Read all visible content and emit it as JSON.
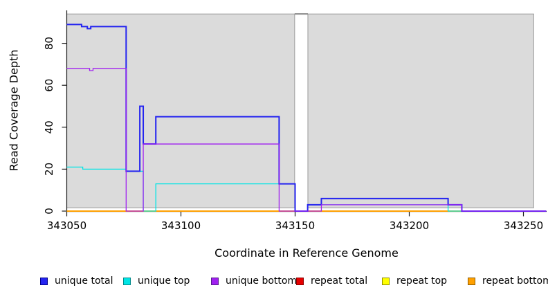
{
  "figure": {
    "x_axis_title": "Coordinate in Reference Genome",
    "y_axis_title": "Read Coverage Depth"
  },
  "legend": {
    "items": [
      {
        "label": "unique total",
        "color": "#2424F0",
        "border": "#00008B"
      },
      {
        "label": "unique top",
        "color": "#00E5E5",
        "border": "#008B8B"
      },
      {
        "label": "unique bottom",
        "color": "#A020F0",
        "border": "#551A8B"
      },
      {
        "label": "repeat total",
        "color": "#E60000",
        "border": "#8B0000"
      },
      {
        "label": "repeat top",
        "color": "#FFFF00",
        "border": "#8B8B00"
      },
      {
        "label": "repeat bottom",
        "color": "#FFA000",
        "border": "#8B5A00"
      }
    ]
  },
  "chart_data": {
    "type": "line",
    "subtype": "step",
    "title": "",
    "xlabel": "Coordinate in Reference Genome",
    "ylabel": "Read Coverage Depth",
    "xlim": [
      343048,
      343260
    ],
    "ylim": [
      0,
      95
    ],
    "x_ticks": [
      343050,
      343100,
      343150,
      343200,
      343250
    ],
    "y_ticks": [
      0,
      20,
      40,
      60,
      80
    ],
    "grid": false,
    "legend_position": "bottom",
    "background_regions": [
      {
        "x1": 343050,
        "x2": 343149.8,
        "y1": 1.6,
        "y2": 94,
        "fill": "#DBDBDB",
        "stroke": "#999999"
      },
      {
        "x1": 343155.6,
        "x2": 343254.5,
        "y1": 1.6,
        "y2": 94,
        "fill": "#DBDBDB",
        "stroke": "#999999"
      }
    ],
    "series": [
      {
        "name": "unique total",
        "color": "#2424F0",
        "width": 2,
        "draw_order": 5,
        "points": [
          [
            343050,
            89
          ],
          [
            343056.5,
            88
          ],
          [
            343059,
            87
          ],
          [
            343060.5,
            88
          ],
          [
            343076,
            19
          ],
          [
            343082,
            50
          ],
          [
            343083.5,
            32
          ],
          [
            343089,
            45
          ],
          [
            343143,
            13
          ],
          [
            343150,
            0
          ],
          [
            343155.5,
            3
          ],
          [
            343161.5,
            6
          ],
          [
            343217,
            3
          ],
          [
            343223,
            0
          ],
          [
            343260,
            0
          ]
        ]
      },
      {
        "name": "unique top",
        "color": "#00E5E5",
        "width": 1.3,
        "draw_order": 4,
        "points": [
          [
            343050,
            21
          ],
          [
            343057,
            20
          ],
          [
            343076,
            19
          ],
          [
            343083.5,
            0
          ],
          [
            343089,
            13
          ],
          [
            343150,
            0
          ],
          [
            343155.5,
            3
          ],
          [
            343217,
            0
          ],
          [
            343260,
            0
          ]
        ]
      },
      {
        "name": "unique bottom",
        "color": "#A020F0",
        "width": 1.3,
        "draw_order": 6,
        "points": [
          [
            343050,
            68
          ],
          [
            343060,
            67
          ],
          [
            343061.5,
            68
          ],
          [
            343076,
            0
          ],
          [
            343083.5,
            32
          ],
          [
            343143,
            0
          ],
          [
            343161.5,
            3
          ],
          [
            343223,
            0
          ],
          [
            343260,
            0
          ]
        ]
      },
      {
        "name": "repeat total",
        "color": "#E60000",
        "width": 1.3,
        "draw_order": 1,
        "points": [
          [
            343050,
            0
          ],
          [
            343260,
            0
          ]
        ]
      },
      {
        "name": "repeat top",
        "color": "#FFFF00",
        "width": 1.3,
        "draw_order": 2,
        "points": [
          [
            343050,
            0
          ],
          [
            343260,
            0
          ]
        ]
      },
      {
        "name": "repeat bottom",
        "color": "#FFA000",
        "width": 2,
        "draw_order": 3,
        "points": [
          [
            343050,
            0
          ],
          [
            343260,
            0
          ]
        ]
      }
    ]
  }
}
